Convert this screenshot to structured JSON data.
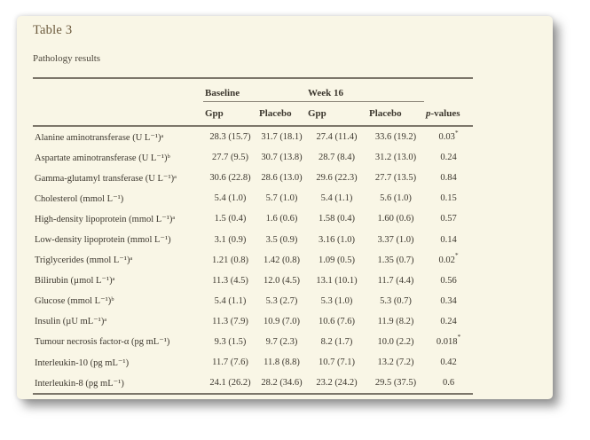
{
  "colors": {
    "page_background": "#ffffff",
    "card_background": "#f9f6e6",
    "title_text": "#6c5a3d",
    "body_text": "#3c372e",
    "rule": "#7c766a"
  },
  "card": {
    "title": "Table 3",
    "subtitle": "Pathology results"
  },
  "table": {
    "groups": [
      "Baseline",
      "Week 16"
    ],
    "columns": [
      "Gpp",
      "Placebo",
      "Gpp",
      "Placebo"
    ],
    "p_header": {
      "italic": "p",
      "rest": "-values"
    },
    "rows": [
      {
        "label": "Alanine aminotransferase (U L⁻¹)ᵃ",
        "baseline_gpp": "28.3 (15.7)",
        "baseline_placebo": "31.7 (18.1)",
        "week16_gpp": "27.4 (11.4)",
        "week16_placebo": "33.6 (19.2)",
        "p": "0.03",
        "p_star": "*"
      },
      {
        "label": "Aspartate aminotransferase (U L⁻¹)ᵇ",
        "baseline_gpp": "27.7 (9.5)",
        "baseline_placebo": "30.7 (13.8)",
        "week16_gpp": "28.7 (8.4)",
        "week16_placebo": "31.2 (13.0)",
        "p": "0.24",
        "p_star": ""
      },
      {
        "label": "Gamma-glutamyl transferase (U L⁻¹)ᵃ",
        "baseline_gpp": "30.6 (22.8)",
        "baseline_placebo": "28.6 (13.0)",
        "week16_gpp": "29.6 (22.3)",
        "week16_placebo": "27.7 (13.5)",
        "p": "0.84",
        "p_star": ""
      },
      {
        "label": "Cholesterol (mmol L⁻¹)",
        "baseline_gpp": "5.4 (1.0)",
        "baseline_placebo": "5.7 (1.0)",
        "week16_gpp": "5.4 (1.1)",
        "week16_placebo": "5.6 (1.0)",
        "p": "0.15",
        "p_star": ""
      },
      {
        "label": "High-density lipoprotein (mmol L⁻¹)ᵃ",
        "baseline_gpp": "1.5 (0.4)",
        "baseline_placebo": "1.6 (0.6)",
        "week16_gpp": "1.58 (0.4)",
        "week16_placebo": "1.60 (0.6)",
        "p": "0.57",
        "p_star": ""
      },
      {
        "label": "Low-density lipoprotein (mmol L⁻¹)",
        "baseline_gpp": "3.1 (0.9)",
        "baseline_placebo": "3.5 (0.9)",
        "week16_gpp": "3.16 (1.0)",
        "week16_placebo": "3.37 (1.0)",
        "p": "0.14",
        "p_star": ""
      },
      {
        "label": "Triglycerides (mmol L⁻¹)ᵃ",
        "baseline_gpp": "1.21 (0.8)",
        "baseline_placebo": "1.42 (0.8)",
        "week16_gpp": "1.09 (0.5)",
        "week16_placebo": "1.35 (0.7)",
        "p": "0.02",
        "p_star": "*"
      },
      {
        "label": "Bilirubin (µmol L⁻¹)ᵃ",
        "baseline_gpp": "11.3 (4.5)",
        "baseline_placebo": "12.0 (4.5)",
        "week16_gpp": "13.1 (10.1)",
        "week16_placebo": "11.7 (4.4)",
        "p": "0.56",
        "p_star": ""
      },
      {
        "label": "Glucose (mmol L⁻¹)ᵇ",
        "baseline_gpp": "5.4 (1.1)",
        "baseline_placebo": "5.3 (2.7)",
        "week16_gpp": "5.3 (1.0)",
        "week16_placebo": "5.3 (0.7)",
        "p": "0.34",
        "p_star": ""
      },
      {
        "label": "Insulin (µU mL⁻¹)ᵃ",
        "baseline_gpp": "11.3 (7.9)",
        "baseline_placebo": "10.9 (7.0)",
        "week16_gpp": "10.6 (7.6)",
        "week16_placebo": "11.9 (8.2)",
        "p": "0.24",
        "p_star": ""
      },
      {
        "label": "Tumour necrosis factor-α (pg mL⁻¹)",
        "baseline_gpp": "9.3 (1.5)",
        "baseline_placebo": "9.7 (2.3)",
        "week16_gpp": "8.2 (1.7)",
        "week16_placebo": "10.0 (2.2)",
        "p": "0.018",
        "p_star": "*"
      },
      {
        "label": "Interleukin-10 (pg mL⁻¹)",
        "baseline_gpp": "11.7 (7.6)",
        "baseline_placebo": "11.8 (8.8)",
        "week16_gpp": "10.7 (7.1)",
        "week16_placebo": "13.2 (7.2)",
        "p": "0.42",
        "p_star": ""
      },
      {
        "label": "Interleukin-8 (pg mL⁻¹)",
        "baseline_gpp": "24.1 (26.2)",
        "baseline_placebo": "28.2 (34.6)",
        "week16_gpp": "23.2 (24.2)",
        "week16_placebo": "29.5 (37.5)",
        "p": "0.6",
        "p_star": ""
      }
    ]
  }
}
